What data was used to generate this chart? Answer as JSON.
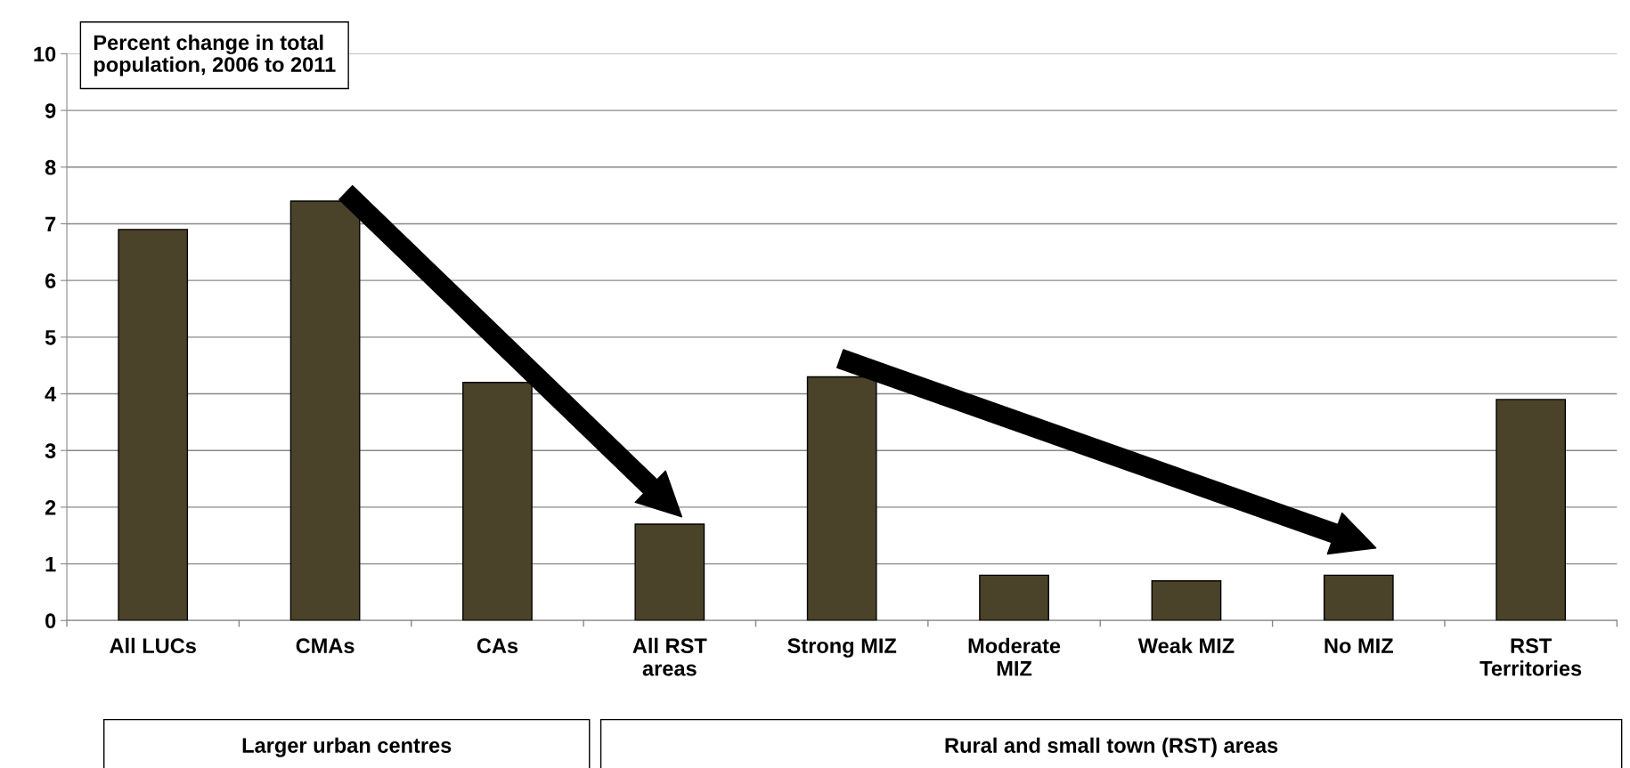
{
  "chart_data": {
    "type": "bar",
    "title": "Percent change in total\npopulation, 2006 to 2011",
    "categories": [
      "All LUCs",
      "CMAs",
      "CAs",
      "All RST\nareas",
      "Strong MIZ",
      "Moderate\nMIZ",
      "Weak MIZ",
      "No MIZ",
      "RST\nTerritories"
    ],
    "values": [
      6.9,
      7.4,
      4.2,
      1.7,
      4.3,
      0.8,
      0.7,
      0.8,
      3.9
    ],
    "color": "#4a4229",
    "ylim": [
      0,
      10
    ],
    "yticks": [
      0,
      1,
      2,
      3,
      4,
      5,
      6,
      7,
      8,
      9,
      10
    ],
    "grid": "y",
    "annotations": [
      "Larger urban centres",
      "Rural and small town (RST) areas"
    ]
  }
}
